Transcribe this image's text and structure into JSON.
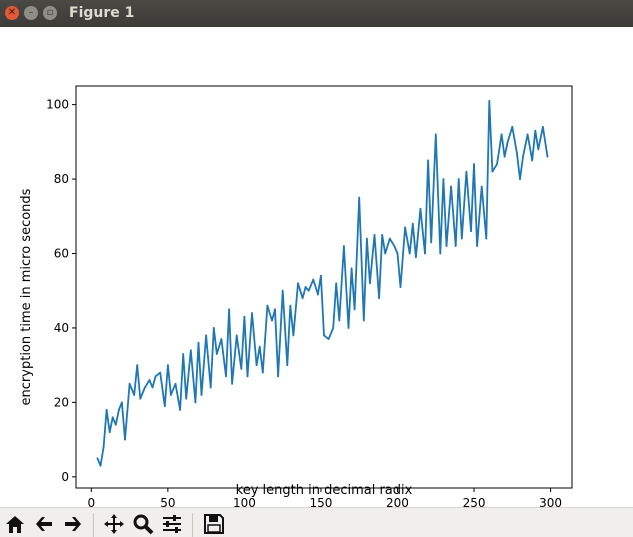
{
  "window": {
    "title": "Figure 1"
  },
  "toolbar": {
    "buttons": [
      "home-icon",
      "back-arrow-icon",
      "forward-arrow-icon",
      "pan-icon",
      "zoom-icon",
      "configure-subplots-icon",
      "save-icon"
    ]
  },
  "chart_data": {
    "type": "line",
    "title": "",
    "xlabel": "key length in decimal radix",
    "ylabel": "encryption time in micro seconds",
    "xlim": [
      -10,
      314
    ],
    "ylim": [
      -3,
      105
    ],
    "xticks": [
      0,
      50,
      100,
      150,
      200,
      250,
      300
    ],
    "yticks": [
      0,
      20,
      40,
      60,
      80,
      100
    ],
    "grid": false,
    "series": [
      {
        "color": "#1f77b4",
        "x": [
          4,
          6,
          8,
          10,
          12,
          14,
          16,
          18,
          20,
          22,
          25,
          28,
          30,
          32,
          35,
          38,
          40,
          42,
          45,
          48,
          50,
          52,
          55,
          58,
          60,
          62,
          65,
          68,
          70,
          72,
          75,
          78,
          80,
          82,
          85,
          88,
          90,
          92,
          95,
          98,
          100,
          102,
          105,
          108,
          110,
          112,
          115,
          118,
          120,
          122,
          125,
          128,
          130,
          132,
          135,
          138,
          140,
          142,
          145,
          148,
          150,
          152,
          155,
          158,
          160,
          162,
          165,
          168,
          170,
          172,
          175,
          178,
          180,
          182,
          185,
          188,
          190,
          192,
          195,
          198,
          200,
          202,
          205,
          208,
          210,
          212,
          215,
          218,
          220,
          222,
          225,
          228,
          230,
          232,
          235,
          238,
          240,
          242,
          245,
          248,
          250,
          252,
          255,
          258,
          260,
          262,
          265,
          268,
          270,
          272,
          275,
          278,
          280,
          282,
          285,
          288,
          290,
          292,
          295,
          298
        ],
        "values": [
          5,
          3,
          8,
          18,
          12,
          16,
          14,
          18,
          20,
          10,
          25,
          22,
          30,
          21,
          24,
          26,
          24,
          27,
          28,
          19,
          30,
          22,
          25,
          18,
          33,
          21,
          34,
          20,
          36,
          22,
          38,
          24,
          40,
          33,
          37,
          27,
          45,
          25,
          38,
          29,
          43,
          27,
          44,
          30,
          35,
          28,
          46,
          42,
          45,
          27,
          50,
          30,
          46,
          38,
          52,
          48,
          51,
          50,
          53,
          49,
          54,
          38,
          37,
          40,
          52,
          42,
          62,
          40,
          56,
          45,
          75,
          42,
          64,
          52,
          65,
          48,
          65,
          60,
          64,
          62,
          60,
          51,
          67,
          60,
          68,
          59,
          72,
          60,
          85,
          63,
          92,
          60,
          80,
          62,
          78,
          62,
          80,
          64,
          82,
          66,
          84,
          62,
          78,
          64,
          101,
          82,
          84,
          92,
          86,
          90,
          94,
          87,
          80,
          86,
          92,
          85,
          93,
          88,
          94,
          86
        ]
      }
    ]
  }
}
